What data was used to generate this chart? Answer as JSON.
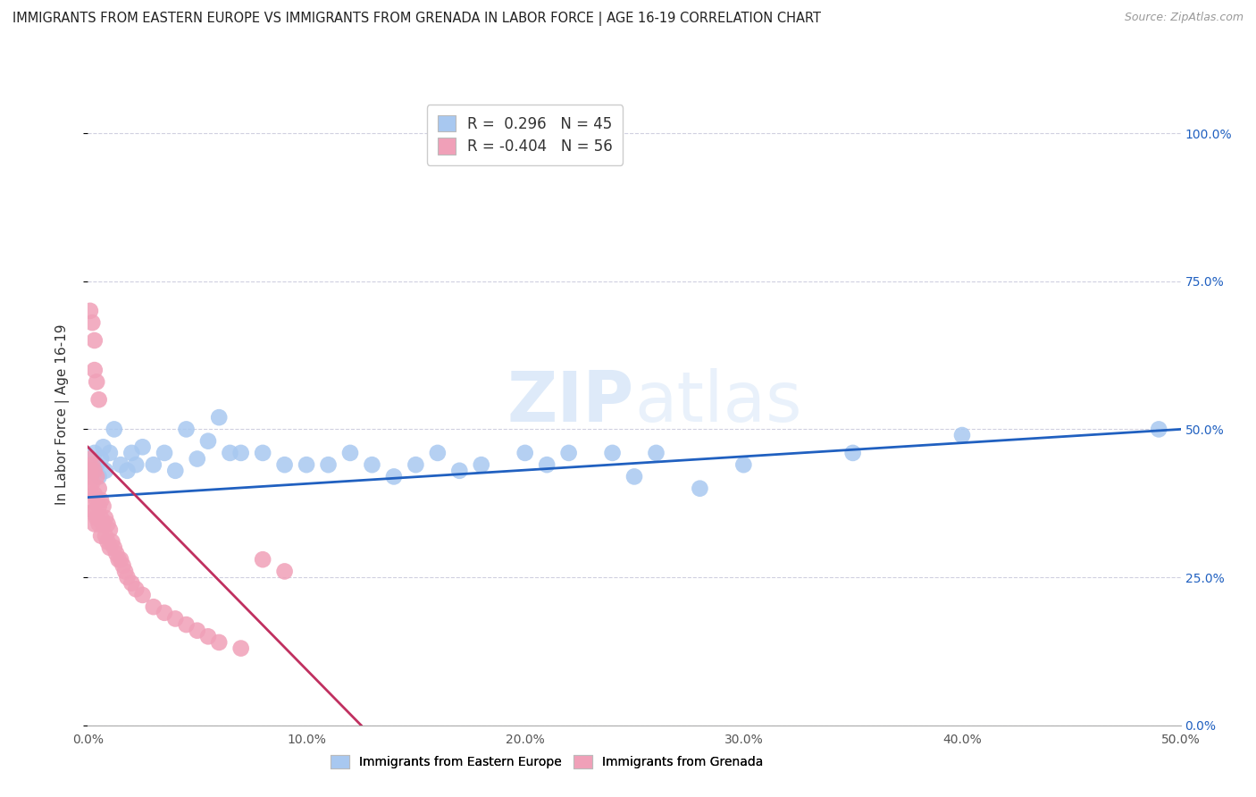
{
  "title": "IMMIGRANTS FROM EASTERN EUROPE VS IMMIGRANTS FROM GRENADA IN LABOR FORCE | AGE 16-19 CORRELATION CHART",
  "source": "Source: ZipAtlas.com",
  "ylabel": "In Labor Force | Age 16-19",
  "xlim": [
    0.0,
    0.5
  ],
  "ylim": [
    0.0,
    1.05
  ],
  "xticks": [
    0.0,
    0.1,
    0.2,
    0.3,
    0.4,
    0.5
  ],
  "xticklabels": [
    "0.0%",
    "10.0%",
    "20.0%",
    "30.0%",
    "40.0%",
    "50.0%"
  ],
  "ytick_positions": [
    0.0,
    0.25,
    0.5,
    0.75,
    1.0
  ],
  "ytick_labels_right": [
    "0.0%",
    "25.0%",
    "50.0%",
    "75.0%",
    "100.0%"
  ],
  "R_blue": 0.296,
  "N_blue": 45,
  "R_pink": -0.404,
  "N_pink": 56,
  "blue_color": "#a8c8f0",
  "pink_color": "#f0a0b8",
  "blue_line_color": "#2060c0",
  "pink_line_color": "#c03060",
  "watermark": "ZIPatlas",
  "background_color": "#ffffff",
  "grid_color": "#d0d0e0",
  "legend_label_blue": "Immigrants from Eastern Europe",
  "legend_label_pink": "Immigrants from Grenada",
  "blue_scatter_x": [
    0.002,
    0.003,
    0.004,
    0.005,
    0.006,
    0.007,
    0.008,
    0.01,
    0.012,
    0.015,
    0.018,
    0.02,
    0.022,
    0.025,
    0.03,
    0.035,
    0.04,
    0.045,
    0.05,
    0.055,
    0.06,
    0.065,
    0.07,
    0.08,
    0.09,
    0.1,
    0.11,
    0.12,
    0.13,
    0.14,
    0.15,
    0.16,
    0.17,
    0.18,
    0.2,
    0.21,
    0.22,
    0.24,
    0.25,
    0.26,
    0.28,
    0.3,
    0.35,
    0.4,
    0.49
  ],
  "blue_scatter_y": [
    0.43,
    0.46,
    0.44,
    0.42,
    0.45,
    0.47,
    0.43,
    0.46,
    0.5,
    0.44,
    0.43,
    0.46,
    0.44,
    0.47,
    0.44,
    0.46,
    0.43,
    0.5,
    0.45,
    0.48,
    0.52,
    0.46,
    0.46,
    0.46,
    0.44,
    0.44,
    0.44,
    0.46,
    0.44,
    0.42,
    0.44,
    0.46,
    0.43,
    0.44,
    0.46,
    0.44,
    0.46,
    0.46,
    0.42,
    0.46,
    0.4,
    0.44,
    0.46,
    0.49,
    0.5
  ],
  "pink_scatter_x": [
    0.001,
    0.001,
    0.001,
    0.001,
    0.002,
    0.002,
    0.002,
    0.002,
    0.003,
    0.003,
    0.003,
    0.003,
    0.004,
    0.004,
    0.004,
    0.005,
    0.005,
    0.005,
    0.006,
    0.006,
    0.006,
    0.007,
    0.007,
    0.008,
    0.008,
    0.009,
    0.009,
    0.01,
    0.01,
    0.011,
    0.012,
    0.013,
    0.014,
    0.015,
    0.016,
    0.017,
    0.018,
    0.02,
    0.022,
    0.025,
    0.03,
    0.035,
    0.04,
    0.045,
    0.05,
    0.055,
    0.06,
    0.07,
    0.08,
    0.09,
    0.001,
    0.002,
    0.003,
    0.003,
    0.004,
    0.005
  ],
  "pink_scatter_y": [
    0.43,
    0.45,
    0.42,
    0.4,
    0.44,
    0.41,
    0.38,
    0.36,
    0.43,
    0.39,
    0.36,
    0.34,
    0.42,
    0.38,
    0.35,
    0.4,
    0.37,
    0.34,
    0.38,
    0.35,
    0.32,
    0.37,
    0.34,
    0.35,
    0.32,
    0.34,
    0.31,
    0.33,
    0.3,
    0.31,
    0.3,
    0.29,
    0.28,
    0.28,
    0.27,
    0.26,
    0.25,
    0.24,
    0.23,
    0.22,
    0.2,
    0.19,
    0.18,
    0.17,
    0.16,
    0.15,
    0.14,
    0.13,
    0.28,
    0.26,
    0.7,
    0.68,
    0.65,
    0.6,
    0.58,
    0.55
  ],
  "blue_trend_x": [
    0.0,
    0.5
  ],
  "blue_trend_y": [
    0.385,
    0.5
  ],
  "pink_trend_x": [
    0.0,
    0.125
  ],
  "pink_trend_y": [
    0.47,
    0.0
  ]
}
